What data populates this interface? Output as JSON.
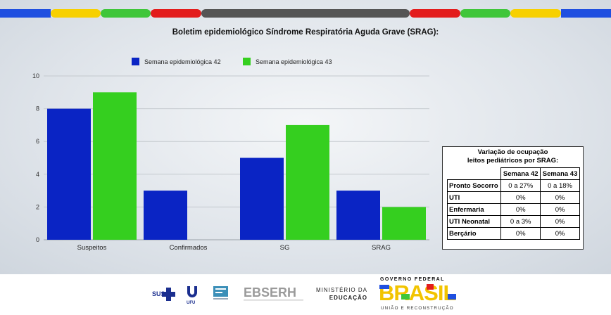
{
  "title": "Boletim epidemiológico Síndrome Respiratória Aguda Grave (SRAG):",
  "colors": {
    "series_42": "#0a24c4",
    "series_43": "#35cf1f",
    "strip": [
      "#1f4fe0",
      "#f7d000",
      "#3fc63a",
      "#e31c1c",
      "#555555",
      "#e31c1c",
      "#3fc63a",
      "#f7d000",
      "#1f4fe0"
    ]
  },
  "chart_data": {
    "type": "bar",
    "categories": [
      "Suspeitos",
      "Confirmados",
      "SG",
      "SRAG"
    ],
    "series": [
      {
        "name": "Semana epidemiológica 42",
        "values": [
          8,
          3,
          5,
          3
        ]
      },
      {
        "name": "Semana epidemiológica 43",
        "values": [
          9,
          0,
          7,
          2
        ]
      }
    ],
    "ylim": [
      0,
      10
    ],
    "yticks": [
      0,
      2,
      4,
      6,
      8,
      10
    ],
    "grid": true,
    "legend": "top-left"
  },
  "occupancy": {
    "title_line1": "Variação de ocupação",
    "title_line2": "leitos pediátricos por SRAG:",
    "headers": [
      "Semana 42",
      "Semana 43"
    ],
    "rows": [
      {
        "label": "Pronto Socorro",
        "w42": "0 a 27%",
        "w43": "0 a 18%"
      },
      {
        "label": "UTI",
        "w42": "0%",
        "w43": "0%"
      },
      {
        "label": "Enfermaria",
        "w42": "0%",
        "w43": "0%"
      },
      {
        "label": "UTI Neonatal",
        "w42": "0 a 3%",
        "w43": "0%"
      },
      {
        "label": "Berçário",
        "w42": "0%",
        "w43": "0%"
      }
    ]
  },
  "footer": {
    "sus": "SUS",
    "ufu": "UFU",
    "ebserh": "EBSERH",
    "ministerio_line1": "MINISTÉRIO DA",
    "ministerio_line2": "EDUCAÇÃO",
    "governo": "GOVERNO FEDERAL",
    "brasil": "BRASIL",
    "uniao": "UNIÃO E RECONSTRUÇÃO"
  }
}
